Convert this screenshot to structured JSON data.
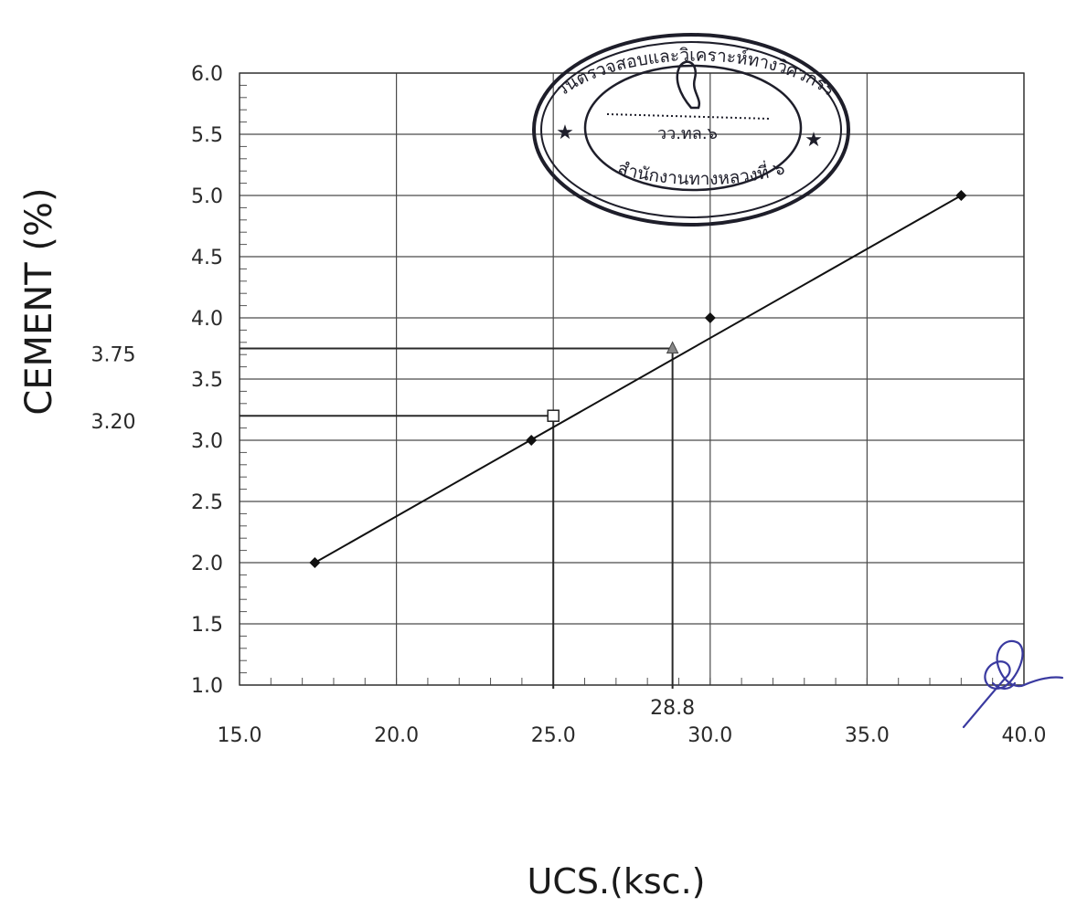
{
  "chart_data": {
    "type": "scatter",
    "title": "",
    "xlabel": "UCS.(ksc.)",
    "ylabel": "CEMENT (%)",
    "xlim": [
      15.0,
      40.0
    ],
    "ylim": [
      1.0,
      6.0
    ],
    "x_ticks": [
      "15.0",
      "20.0",
      "25.0",
      "30.0",
      "35.0",
      "40.0"
    ],
    "y_ticks": [
      "1.0",
      "1.5",
      "2.0",
      "2.5",
      "3.0",
      "3.5",
      "4.0",
      "4.5",
      "5.0",
      "5.5",
      "6.0"
    ],
    "grid": true,
    "legend": "none",
    "series": [
      {
        "marker": "diamond",
        "color": "#111111",
        "points": [
          [
            17.4,
            2.0
          ],
          [
            24.3,
            3.0
          ],
          [
            30.0,
            4.0
          ],
          [
            38.0,
            5.0
          ]
        ]
      }
    ],
    "trendline": {
      "from": [
        17.4,
        2.0
      ],
      "to": [
        38.0,
        5.0
      ],
      "color": "#111111"
    },
    "reference_points": [
      {
        "x": 25.0,
        "y": 3.2,
        "marker": "open-square",
        "y_label": "3.20",
        "x_label": ""
      },
      {
        "x": 28.8,
        "y": 3.75,
        "marker": "triangle",
        "y_label": "3.75",
        "x_label": "28.8"
      }
    ]
  },
  "stamp": {
    "top_text": "ส่วนตรวจสอบและวิเคราะห์ทางวิศวกรรม",
    "middle_text": "วว.ทล.๖",
    "bottom_text": "สำนักงานทางหลวงที่ ๖",
    "color": "#1e1e2a"
  },
  "signature_color": "#3a3aa0"
}
